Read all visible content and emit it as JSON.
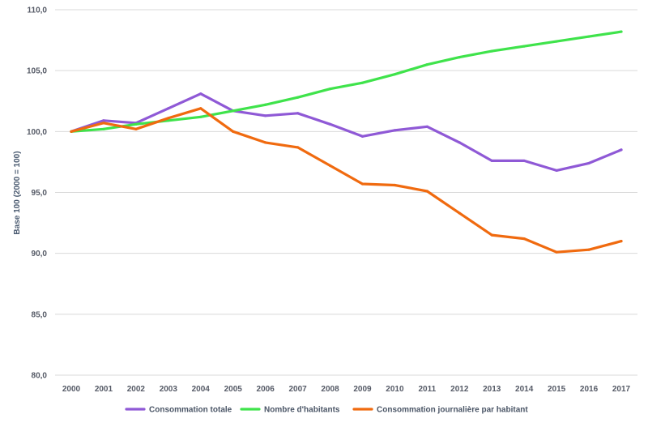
{
  "chart_data": {
    "type": "line",
    "title": "",
    "xlabel": "",
    "ylabel": "Base 100 (2000 = 100)",
    "ylim": [
      80,
      110
    ],
    "y_ticks": [
      "80,0",
      "85,0",
      "90,0",
      "95,0",
      "100,0",
      "105,0",
      "110,0"
    ],
    "y_tick_values": [
      80,
      85,
      90,
      95,
      100,
      105,
      110
    ],
    "grid": "horizontal",
    "legend": "bottom",
    "categories": [
      "2000",
      "2001",
      "2002",
      "2003",
      "2004",
      "2005",
      "2006",
      "2007",
      "2008",
      "2009",
      "2010",
      "2011",
      "2012",
      "2013",
      "2014",
      "2015",
      "2016",
      "2017"
    ],
    "series": [
      {
        "name": "Consommation totale",
        "color": "#8f59d6",
        "values": [
          100.0,
          100.9,
          100.7,
          101.9,
          103.1,
          101.7,
          101.3,
          101.5,
          100.6,
          99.6,
          100.1,
          100.4,
          99.1,
          97.6,
          97.6,
          96.8,
          97.4,
          98.5
        ]
      },
      {
        "name": "Nombre d'habitants",
        "color": "#3fe34b",
        "values": [
          100.0,
          100.2,
          100.6,
          100.9,
          101.2,
          101.7,
          102.2,
          102.8,
          103.5,
          104.0,
          104.7,
          105.5,
          106.1,
          106.6,
          107.0,
          107.4,
          107.8,
          108.2
        ]
      },
      {
        "name": "Consommation journalière par habitant",
        "color": "#f06a0f",
        "values": [
          100.0,
          100.7,
          100.2,
          101.1,
          101.9,
          100.0,
          99.1,
          98.7,
          97.2,
          95.7,
          95.6,
          95.1,
          93.3,
          91.5,
          91.2,
          90.1,
          90.3,
          91.0
        ]
      }
    ]
  }
}
